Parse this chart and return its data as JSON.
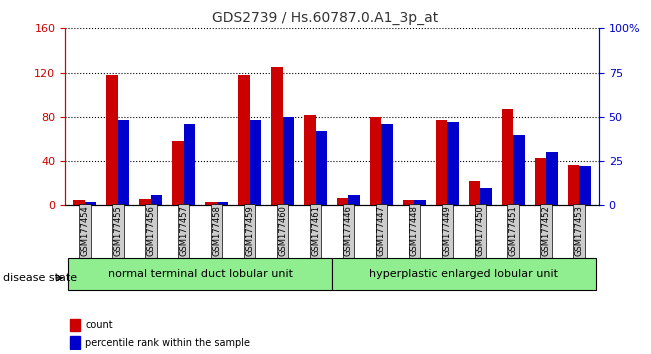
{
  "title": "GDS2739 / Hs.60787.0.A1_3p_at",
  "samples": [
    "GSM177454",
    "GSM177455",
    "GSM177456",
    "GSM177457",
    "GSM177458",
    "GSM177459",
    "GSM177460",
    "GSM177461",
    "GSM177446",
    "GSM177447",
    "GSM177448",
    "GSM177449",
    "GSM177450",
    "GSM177451",
    "GSM177452",
    "GSM177453"
  ],
  "counts": [
    5,
    118,
    6,
    58,
    3,
    118,
    125,
    82,
    7,
    80,
    5,
    77,
    22,
    87,
    43,
    36
  ],
  "percentiles": [
    2,
    48,
    6,
    46,
    2,
    48,
    50,
    42,
    6,
    46,
    3,
    47,
    10,
    40,
    30,
    22
  ],
  "count_color": "#cc0000",
  "percentile_color": "#0000cc",
  "ylim_left": [
    0,
    160
  ],
  "ylim_right": [
    0,
    100
  ],
  "yticks_left": [
    0,
    40,
    80,
    120,
    160
  ],
  "yticks_right": [
    0,
    25,
    50,
    75,
    100
  ],
  "ytick_labels_right": [
    "0",
    "25",
    "50",
    "75",
    "100%"
  ],
  "group1_label": "normal terminal duct lobular unit",
  "group2_label": "hyperplastic enlarged lobular unit",
  "disease_state_label": "disease state",
  "legend_count_label": "count",
  "legend_percentile_label": "percentile rank within the sample",
  "bar_width": 0.35,
  "group_bg_color": "#90ee90",
  "tick_label_bg": "#cccccc",
  "title_color": "#333333",
  "left_axis_color": "#cc0000",
  "right_axis_color": "#0000cc"
}
